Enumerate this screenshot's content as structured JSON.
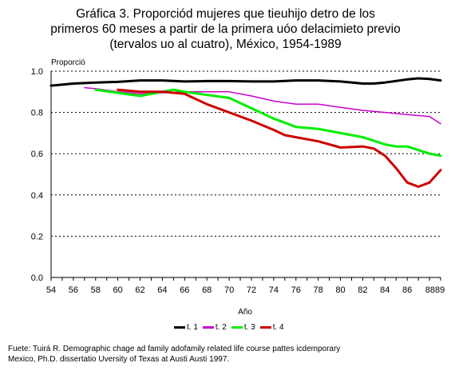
{
  "title_lines": [
    "Gráfica 3.  Proporciód mujeres que tieuhijo detro de los",
    "primeros 60 meses a partir de la primera uóo delacimieto previo",
    "(tervalos uo al cuatro), México, 1954-1989"
  ],
  "source_lines": [
    "Fuete: Tuirá R. Demographic chage ad family adofamily related life course pattes icdemporary",
    "Mexico, Ph.D. dissertatio Uversity of Texas at Austi Austi 1997."
  ],
  "chart_data": {
    "type": "line",
    "ylabel": "Proporció",
    "xlabel": "Año",
    "ylim": [
      0.0,
      1.0
    ],
    "xlim": [
      54,
      89
    ],
    "yticks": [
      "0.0",
      "0.2",
      "0.4",
      "0.6",
      "0.8",
      "1.0"
    ],
    "xticks": [
      "54",
      "56",
      "58",
      "60",
      "62",
      "64",
      "66",
      "68",
      "70",
      "72",
      "74",
      "76",
      "78",
      "80",
      "82",
      "84",
      "86",
      "8889"
    ],
    "xtick_values": [
      54,
      56,
      58,
      60,
      62,
      64,
      66,
      68,
      70,
      72,
      74,
      76,
      78,
      80,
      82,
      84,
      86,
      88.5
    ],
    "grid": "dotted horizontal",
    "legend_position": "bottom",
    "series": [
      {
        "name": "t. 1",
        "color": "#000000",
        "x": [
          54,
          56,
          58,
          60,
          62,
          64,
          66,
          68,
          70,
          72,
          74,
          76,
          78,
          80,
          82,
          83,
          84,
          86,
          87,
          88,
          89
        ],
        "y": [
          0.93,
          0.94,
          0.945,
          0.948,
          0.955,
          0.955,
          0.95,
          0.952,
          0.952,
          0.95,
          0.95,
          0.955,
          0.955,
          0.95,
          0.94,
          0.94,
          0.945,
          0.96,
          0.965,
          0.962,
          0.955
        ]
      },
      {
        "name": "t. 2",
        "color": "#cc00cc",
        "x": [
          57,
          58,
          60,
          62,
          64,
          66,
          68,
          70,
          72,
          74,
          76,
          78,
          80,
          82,
          84,
          86,
          88,
          89
        ],
        "y": [
          0.92,
          0.915,
          0.9,
          0.89,
          0.895,
          0.9,
          0.9,
          0.9,
          0.88,
          0.855,
          0.84,
          0.84,
          0.825,
          0.81,
          0.8,
          0.79,
          0.78,
          0.745
        ]
      },
      {
        "name": "t. 3",
        "color": "#00ee00",
        "x": [
          58,
          60,
          62,
          64,
          65,
          66,
          68,
          70,
          72,
          74,
          76,
          78,
          80,
          82,
          84,
          85,
          86,
          88,
          89
        ],
        "y": [
          0.91,
          0.895,
          0.88,
          0.9,
          0.91,
          0.9,
          0.885,
          0.87,
          0.82,
          0.77,
          0.73,
          0.72,
          0.7,
          0.68,
          0.645,
          0.635,
          0.635,
          0.6,
          0.59
        ]
      },
      {
        "name": "t. 4",
        "color": "#cc0000",
        "x": [
          60,
          62,
          64,
          66,
          68,
          70,
          72,
          74,
          75,
          76,
          78,
          80,
          82,
          83,
          84,
          85,
          86,
          87,
          88,
          89
        ],
        "y": [
          0.91,
          0.9,
          0.9,
          0.89,
          0.84,
          0.8,
          0.76,
          0.715,
          0.69,
          0.68,
          0.66,
          0.63,
          0.635,
          0.625,
          0.59,
          0.53,
          0.46,
          0.44,
          0.46,
          0.52
        ]
      }
    ]
  }
}
